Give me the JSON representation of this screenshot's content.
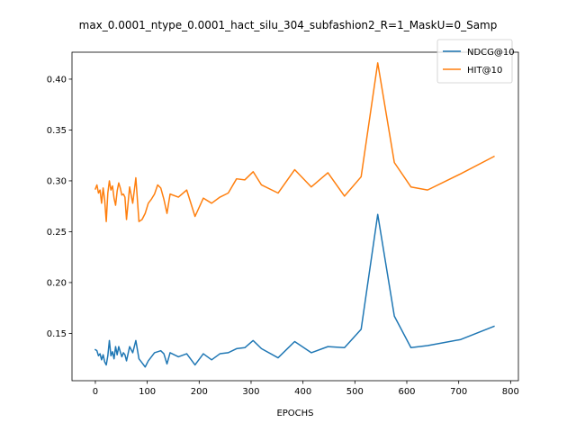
{
  "chart_data": {
    "type": "line",
    "title": "max_0.0001_ntype_0.0001_hact_silu_304_subfashion2_R=1_MaskU=0_Samp",
    "xlabel": "EPOCHS",
    "ylabel": "",
    "xlim": [
      -45,
      815
    ],
    "ylim": [
      0.1035,
      0.4265
    ],
    "xticks": [
      0,
      100,
      200,
      300,
      400,
      500,
      600,
      700,
      800
    ],
    "yticks": [
      0.15,
      0.2,
      0.25,
      0.3,
      0.35,
      0.4
    ],
    "ytick_labels": [
      "0.15",
      "0.20",
      "0.25",
      "0.30",
      "0.35",
      "0.40"
    ],
    "grid": false,
    "legend_position": "top-right",
    "series": [
      {
        "name": "NDCG@10",
        "color": "#1f77b4",
        "x": [
          0,
          3,
          6,
          9,
          12,
          15,
          18,
          21,
          24,
          27,
          30,
          33,
          36,
          39,
          42,
          45,
          48,
          51,
          54,
          57,
          60,
          66,
          72,
          78,
          84,
          90,
          96,
          102,
          108,
          114,
          120,
          126,
          132,
          138,
          144,
          160,
          176,
          192,
          208,
          224,
          240,
          256,
          272,
          288,
          304,
          320,
          352,
          384,
          416,
          448,
          480,
          512,
          544,
          576,
          608,
          640,
          704,
          768
        ],
        "values": [
          0.134,
          0.133,
          0.128,
          0.13,
          0.124,
          0.129,
          0.122,
          0.119,
          0.128,
          0.143,
          0.128,
          0.132,
          0.125,
          0.137,
          0.129,
          0.137,
          0.132,
          0.127,
          0.131,
          0.129,
          0.123,
          0.137,
          0.131,
          0.143,
          0.125,
          0.121,
          0.117,
          0.123,
          0.127,
          0.131,
          0.132,
          0.133,
          0.13,
          0.12,
          0.131,
          0.127,
          0.13,
          0.119,
          0.13,
          0.124,
          0.13,
          0.131,
          0.135,
          0.136,
          0.143,
          0.135,
          0.126,
          0.142,
          0.131,
          0.137,
          0.136,
          0.154,
          0.267,
          0.167,
          0.136,
          0.138,
          0.144,
          0.157
        ]
      },
      {
        "name": "HIT@10",
        "color": "#ff7f0e",
        "x": [
          0,
          3,
          6,
          9,
          12,
          15,
          18,
          21,
          24,
          27,
          30,
          33,
          36,
          39,
          42,
          45,
          48,
          51,
          54,
          57,
          60,
          66,
          72,
          78,
          84,
          90,
          96,
          102,
          108,
          114,
          120,
          126,
          132,
          138,
          144,
          160,
          176,
          192,
          208,
          224,
          240,
          256,
          272,
          288,
          304,
          320,
          352,
          384,
          416,
          448,
          480,
          512,
          544,
          576,
          608,
          640,
          704,
          768
        ],
        "values": [
          0.292,
          0.296,
          0.288,
          0.291,
          0.278,
          0.293,
          0.281,
          0.26,
          0.288,
          0.3,
          0.291,
          0.295,
          0.283,
          0.276,
          0.29,
          0.298,
          0.293,
          0.286,
          0.287,
          0.284,
          0.262,
          0.294,
          0.278,
          0.303,
          0.26,
          0.262,
          0.268,
          0.278,
          0.282,
          0.287,
          0.296,
          0.293,
          0.282,
          0.268,
          0.287,
          0.284,
          0.291,
          0.265,
          0.283,
          0.278,
          0.284,
          0.288,
          0.302,
          0.301,
          0.309,
          0.296,
          0.288,
          0.311,
          0.294,
          0.308,
          0.285,
          0.304,
          0.416,
          0.318,
          0.294,
          0.291,
          0.307,
          0.324
        ]
      }
    ]
  }
}
